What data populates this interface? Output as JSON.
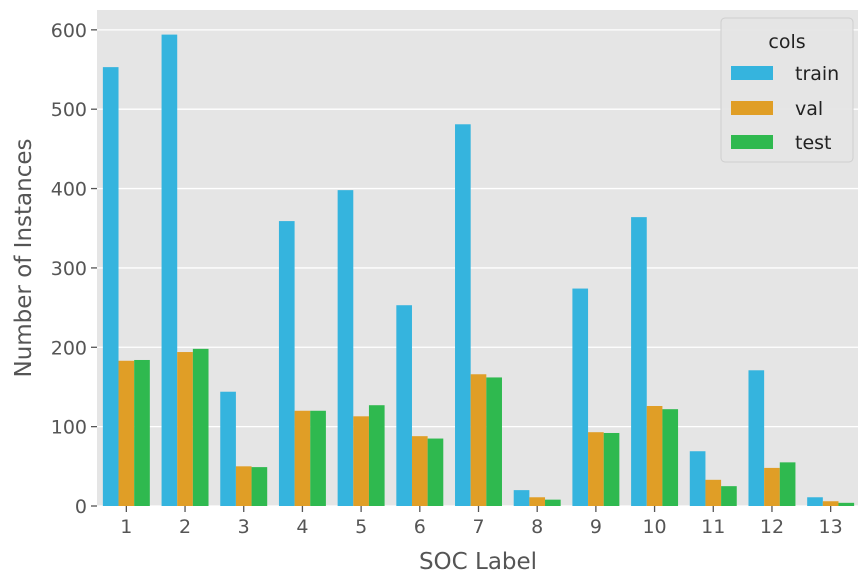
{
  "chart_data": {
    "type": "bar",
    "xlabel": "SOC Label",
    "ylabel": "Number of Instances",
    "categories": [
      "1",
      "2",
      "3",
      "4",
      "5",
      "6",
      "7",
      "8",
      "9",
      "10",
      "11",
      "12",
      "13"
    ],
    "ylim": [
      0,
      625
    ],
    "yticks": [
      0,
      100,
      200,
      300,
      400,
      500,
      600
    ],
    "grid": true,
    "legend": {
      "title": "cols",
      "placement": "top-right"
    },
    "series": [
      {
        "name": "train",
        "color": "#35b4de",
        "values": [
          553,
          594,
          144,
          359,
          398,
          253,
          481,
          20,
          274,
          364,
          69,
          171,
          11
        ]
      },
      {
        "name": "val",
        "color": "#e09e26",
        "values": [
          183,
          194,
          50,
          120,
          113,
          88,
          166,
          11,
          93,
          126,
          33,
          48,
          6
        ]
      },
      {
        "name": "test",
        "color": "#2fb94f",
        "values": [
          184,
          198,
          49,
          120,
          127,
          85,
          162,
          8,
          92,
          122,
          25,
          55,
          4
        ]
      }
    ]
  }
}
